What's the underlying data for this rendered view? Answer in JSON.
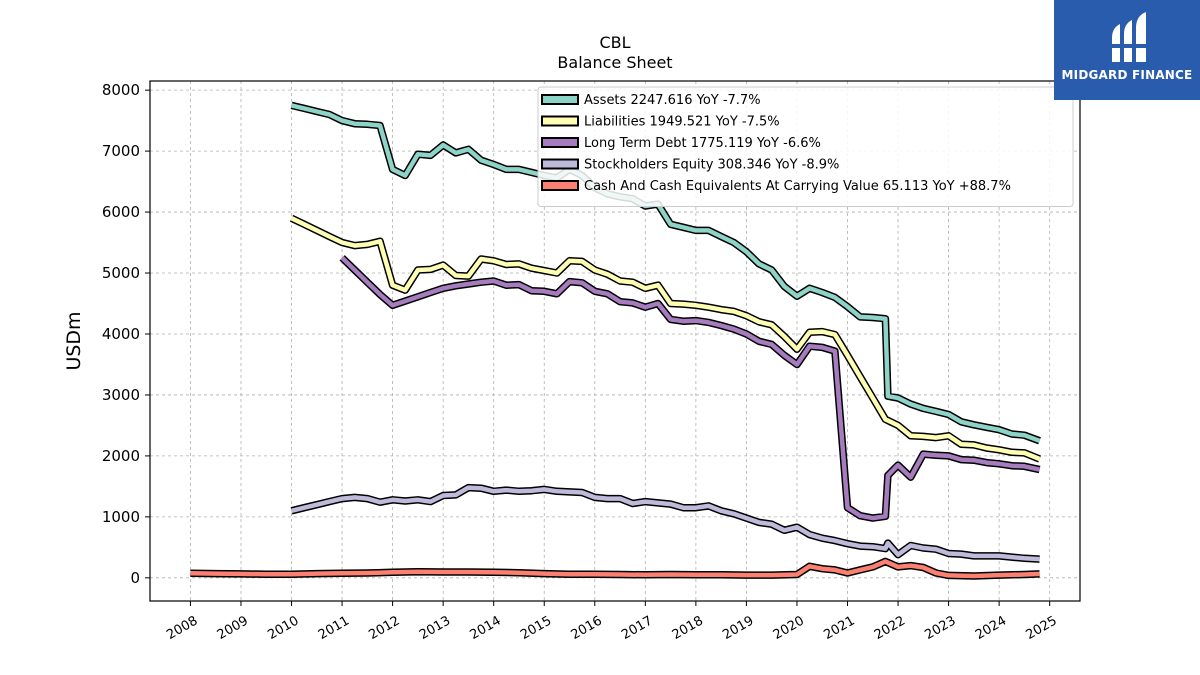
{
  "chart_data": {
    "type": "line",
    "title": "CBL",
    "subtitle": "Balance  Sheet",
    "ylabel": "USDm",
    "xlabel": "",
    "ylim": [
      -380,
      8150
    ],
    "xlim": [
      2007.2,
      2025.6
    ],
    "yticks": [
      0,
      1000,
      2000,
      3000,
      4000,
      5000,
      6000,
      7000,
      8000
    ],
    "xticks": [
      "2008",
      "2009",
      "2010",
      "2011",
      "2012",
      "2013",
      "2014",
      "2015",
      "2016",
      "2017",
      "2018",
      "2019",
      "2020",
      "2021",
      "2022",
      "2023",
      "2024",
      "2025"
    ],
    "grid": true,
    "legend_position": "top-right",
    "series": [
      {
        "name": "Assets",
        "legend": "Assets  2247.616 YoY -7.7%",
        "color": "#8dd3c7",
        "points": [
          [
            2010.0,
            7750
          ],
          [
            2010.25,
            7700
          ],
          [
            2010.5,
            7650
          ],
          [
            2010.75,
            7600
          ],
          [
            2011.0,
            7500
          ],
          [
            2011.25,
            7450
          ],
          [
            2011.5,
            7440
          ],
          [
            2011.75,
            7420
          ],
          [
            2012.0,
            6700
          ],
          [
            2012.25,
            6600
          ],
          [
            2012.5,
            6950
          ],
          [
            2012.75,
            6930
          ],
          [
            2013.0,
            7100
          ],
          [
            2013.25,
            6970
          ],
          [
            2013.5,
            7030
          ],
          [
            2013.75,
            6850
          ],
          [
            2014.0,
            6780
          ],
          [
            2014.25,
            6700
          ],
          [
            2014.5,
            6700
          ],
          [
            2014.75,
            6650
          ],
          [
            2015.0,
            6600
          ],
          [
            2015.25,
            6560
          ],
          [
            2015.5,
            6700
          ],
          [
            2015.75,
            6600
          ],
          [
            2016.0,
            6400
          ],
          [
            2016.25,
            6300
          ],
          [
            2016.5,
            6250
          ],
          [
            2016.75,
            6220
          ],
          [
            2017.0,
            6100
          ],
          [
            2017.25,
            6130
          ],
          [
            2017.5,
            5800
          ],
          [
            2017.75,
            5750
          ],
          [
            2018.0,
            5700
          ],
          [
            2018.25,
            5700
          ],
          [
            2018.5,
            5600
          ],
          [
            2018.75,
            5500
          ],
          [
            2019.0,
            5350
          ],
          [
            2019.25,
            5150
          ],
          [
            2019.5,
            5050
          ],
          [
            2019.75,
            4780
          ],
          [
            2020.0,
            4620
          ],
          [
            2020.25,
            4750
          ],
          [
            2020.5,
            4680
          ],
          [
            2020.75,
            4600
          ],
          [
            2021.0,
            4450
          ],
          [
            2021.25,
            4280
          ],
          [
            2021.5,
            4270
          ],
          [
            2021.75,
            4250
          ],
          [
            2021.8,
            2980
          ],
          [
            2022.0,
            2950
          ],
          [
            2022.25,
            2850
          ],
          [
            2022.5,
            2780
          ],
          [
            2022.75,
            2730
          ],
          [
            2023.0,
            2680
          ],
          [
            2023.25,
            2560
          ],
          [
            2023.5,
            2510
          ],
          [
            2023.75,
            2470
          ],
          [
            2024.0,
            2430
          ],
          [
            2024.25,
            2360
          ],
          [
            2024.5,
            2340
          ],
          [
            2024.8,
            2248
          ]
        ]
      },
      {
        "name": "Liabilities",
        "legend": "Liabilities  1949.521 YoY -7.5%",
        "color": "#ffffb3",
        "points": [
          [
            2010.0,
            5900
          ],
          [
            2010.25,
            5800
          ],
          [
            2010.5,
            5700
          ],
          [
            2010.75,
            5600
          ],
          [
            2011.0,
            5500
          ],
          [
            2011.25,
            5450
          ],
          [
            2011.5,
            5470
          ],
          [
            2011.75,
            5520
          ],
          [
            2012.0,
            4800
          ],
          [
            2012.25,
            4720
          ],
          [
            2012.5,
            5050
          ],
          [
            2012.75,
            5060
          ],
          [
            2013.0,
            5130
          ],
          [
            2013.25,
            4960
          ],
          [
            2013.5,
            4950
          ],
          [
            2013.75,
            5230
          ],
          [
            2014.0,
            5200
          ],
          [
            2014.25,
            5140
          ],
          [
            2014.5,
            5150
          ],
          [
            2014.75,
            5080
          ],
          [
            2015.0,
            5040
          ],
          [
            2015.25,
            5000
          ],
          [
            2015.5,
            5200
          ],
          [
            2015.75,
            5190
          ],
          [
            2016.0,
            5050
          ],
          [
            2016.25,
            4980
          ],
          [
            2016.5,
            4870
          ],
          [
            2016.75,
            4850
          ],
          [
            2017.0,
            4750
          ],
          [
            2017.25,
            4800
          ],
          [
            2017.5,
            4500
          ],
          [
            2017.75,
            4490
          ],
          [
            2018.0,
            4470
          ],
          [
            2018.25,
            4440
          ],
          [
            2018.5,
            4400
          ],
          [
            2018.75,
            4370
          ],
          [
            2019.0,
            4300
          ],
          [
            2019.25,
            4200
          ],
          [
            2019.5,
            4150
          ],
          [
            2019.75,
            3960
          ],
          [
            2020.0,
            3750
          ],
          [
            2020.25,
            4030
          ],
          [
            2020.5,
            4040
          ],
          [
            2020.75,
            3990
          ],
          [
            2021.0,
            3650
          ],
          [
            2021.25,
            3300
          ],
          [
            2021.5,
            2950
          ],
          [
            2021.75,
            2600
          ],
          [
            2022.0,
            2500
          ],
          [
            2022.25,
            2330
          ],
          [
            2022.5,
            2320
          ],
          [
            2022.75,
            2300
          ],
          [
            2023.0,
            2330
          ],
          [
            2023.25,
            2190
          ],
          [
            2023.5,
            2180
          ],
          [
            2023.75,
            2130
          ],
          [
            2024.0,
            2100
          ],
          [
            2024.25,
            2060
          ],
          [
            2024.5,
            2050
          ],
          [
            2024.8,
            1950
          ]
        ]
      },
      {
        "name": "Long Term Debt",
        "legend": "Long Term Debt  1775.119 YoY -6.6%",
        "color": "#bebada",
        "lineColor": "#a77cbf",
        "points": [
          [
            2011.0,
            5250
          ],
          [
            2011.25,
            5050
          ],
          [
            2011.5,
            4850
          ],
          [
            2011.75,
            4650
          ],
          [
            2012.0,
            4470
          ],
          [
            2012.25,
            4540
          ],
          [
            2012.5,
            4610
          ],
          [
            2012.75,
            4680
          ],
          [
            2013.0,
            4750
          ],
          [
            2013.25,
            4790
          ],
          [
            2013.5,
            4820
          ],
          [
            2013.75,
            4850
          ],
          [
            2014.0,
            4870
          ],
          [
            2014.25,
            4800
          ],
          [
            2014.5,
            4810
          ],
          [
            2014.75,
            4710
          ],
          [
            2015.0,
            4700
          ],
          [
            2015.25,
            4660
          ],
          [
            2015.5,
            4860
          ],
          [
            2015.75,
            4840
          ],
          [
            2016.0,
            4700
          ],
          [
            2016.25,
            4660
          ],
          [
            2016.5,
            4530
          ],
          [
            2016.75,
            4510
          ],
          [
            2017.0,
            4440
          ],
          [
            2017.25,
            4500
          ],
          [
            2017.5,
            4240
          ],
          [
            2017.75,
            4210
          ],
          [
            2018.0,
            4220
          ],
          [
            2018.25,
            4190
          ],
          [
            2018.5,
            4140
          ],
          [
            2018.75,
            4080
          ],
          [
            2019.0,
            4000
          ],
          [
            2019.25,
            3880
          ],
          [
            2019.5,
            3830
          ],
          [
            2019.75,
            3650
          ],
          [
            2020.0,
            3500
          ],
          [
            2020.25,
            3800
          ],
          [
            2020.5,
            3780
          ],
          [
            2020.75,
            3720
          ],
          [
            2021.0,
            1150
          ],
          [
            2021.25,
            1020
          ],
          [
            2021.5,
            980
          ],
          [
            2021.75,
            1010
          ],
          [
            2021.8,
            1680
          ],
          [
            2022.0,
            1850
          ],
          [
            2022.25,
            1650
          ],
          [
            2022.5,
            2030
          ],
          [
            2022.75,
            2010
          ],
          [
            2023.0,
            2000
          ],
          [
            2023.25,
            1940
          ],
          [
            2023.5,
            1930
          ],
          [
            2023.75,
            1890
          ],
          [
            2024.0,
            1870
          ],
          [
            2024.25,
            1840
          ],
          [
            2024.5,
            1830
          ],
          [
            2024.8,
            1775
          ]
        ]
      },
      {
        "name": "Stockholders Equity",
        "legend": "Stockholders Equity  308.346 YoY -8.9%",
        "color": "#bebada",
        "points": [
          [
            2010.0,
            1100
          ],
          [
            2010.25,
            1150
          ],
          [
            2010.5,
            1200
          ],
          [
            2010.75,
            1250
          ],
          [
            2011.0,
            1300
          ],
          [
            2011.25,
            1320
          ],
          [
            2011.5,
            1300
          ],
          [
            2011.75,
            1240
          ],
          [
            2012.0,
            1280
          ],
          [
            2012.25,
            1260
          ],
          [
            2012.5,
            1280
          ],
          [
            2012.75,
            1250
          ],
          [
            2013.0,
            1350
          ],
          [
            2013.25,
            1360
          ],
          [
            2013.5,
            1480
          ],
          [
            2013.75,
            1470
          ],
          [
            2014.0,
            1420
          ],
          [
            2014.25,
            1440
          ],
          [
            2014.5,
            1420
          ],
          [
            2014.75,
            1430
          ],
          [
            2015.0,
            1450
          ],
          [
            2015.25,
            1420
          ],
          [
            2015.5,
            1410
          ],
          [
            2015.75,
            1400
          ],
          [
            2016.0,
            1320
          ],
          [
            2016.25,
            1300
          ],
          [
            2016.5,
            1300
          ],
          [
            2016.75,
            1220
          ],
          [
            2017.0,
            1250
          ],
          [
            2017.25,
            1230
          ],
          [
            2017.5,
            1210
          ],
          [
            2017.75,
            1150
          ],
          [
            2018.0,
            1150
          ],
          [
            2018.25,
            1180
          ],
          [
            2018.5,
            1100
          ],
          [
            2018.75,
            1050
          ],
          [
            2019.0,
            980
          ],
          [
            2019.25,
            910
          ],
          [
            2019.5,
            880
          ],
          [
            2019.75,
            780
          ],
          [
            2020.0,
            830
          ],
          [
            2020.25,
            710
          ],
          [
            2020.5,
            650
          ],
          [
            2020.75,
            610
          ],
          [
            2021.0,
            560
          ],
          [
            2021.25,
            520
          ],
          [
            2021.5,
            510
          ],
          [
            2021.75,
            480
          ],
          [
            2021.8,
            570
          ],
          [
            2022.0,
            380
          ],
          [
            2022.25,
            530
          ],
          [
            2022.5,
            490
          ],
          [
            2022.75,
            470
          ],
          [
            2023.0,
            400
          ],
          [
            2023.25,
            390
          ],
          [
            2023.5,
            360
          ],
          [
            2023.75,
            360
          ],
          [
            2024.0,
            360
          ],
          [
            2024.25,
            340
          ],
          [
            2024.5,
            320
          ],
          [
            2024.8,
            308
          ]
        ]
      },
      {
        "name": "Cash And Cash Equivalents At Carrying Value",
        "legend": "Cash And Cash Equivalents At Carrying Value  65.113 YoY +88.7%",
        "color": "#fb8072",
        "points": [
          [
            2008.0,
            75
          ],
          [
            2008.5,
            70
          ],
          [
            2009.0,
            65
          ],
          [
            2009.5,
            60
          ],
          [
            2010.0,
            60
          ],
          [
            2010.5,
            70
          ],
          [
            2011.0,
            75
          ],
          [
            2011.5,
            80
          ],
          [
            2012.0,
            90
          ],
          [
            2012.5,
            100
          ],
          [
            2013.0,
            95
          ],
          [
            2013.5,
            95
          ],
          [
            2014.0,
            90
          ],
          [
            2014.5,
            85
          ],
          [
            2015.0,
            70
          ],
          [
            2015.5,
            60
          ],
          [
            2016.0,
            60
          ],
          [
            2016.5,
            55
          ],
          [
            2017.0,
            50
          ],
          [
            2017.5,
            55
          ],
          [
            2018.0,
            50
          ],
          [
            2018.5,
            50
          ],
          [
            2019.0,
            45
          ],
          [
            2019.5,
            45
          ],
          [
            2020.0,
            55
          ],
          [
            2020.25,
            190
          ],
          [
            2020.5,
            150
          ],
          [
            2020.75,
            130
          ],
          [
            2021.0,
            80
          ],
          [
            2021.25,
            130
          ],
          [
            2021.5,
            180
          ],
          [
            2021.75,
            270
          ],
          [
            2022.0,
            180
          ],
          [
            2022.25,
            200
          ],
          [
            2022.5,
            170
          ],
          [
            2022.75,
            80
          ],
          [
            2023.0,
            40
          ],
          [
            2023.5,
            30
          ],
          [
            2024.0,
            45
          ],
          [
            2024.5,
            55
          ],
          [
            2024.8,
            65
          ]
        ]
      }
    ]
  },
  "logo": {
    "text": "MIDGARD FINANCE",
    "color": "#2a5cae"
  }
}
